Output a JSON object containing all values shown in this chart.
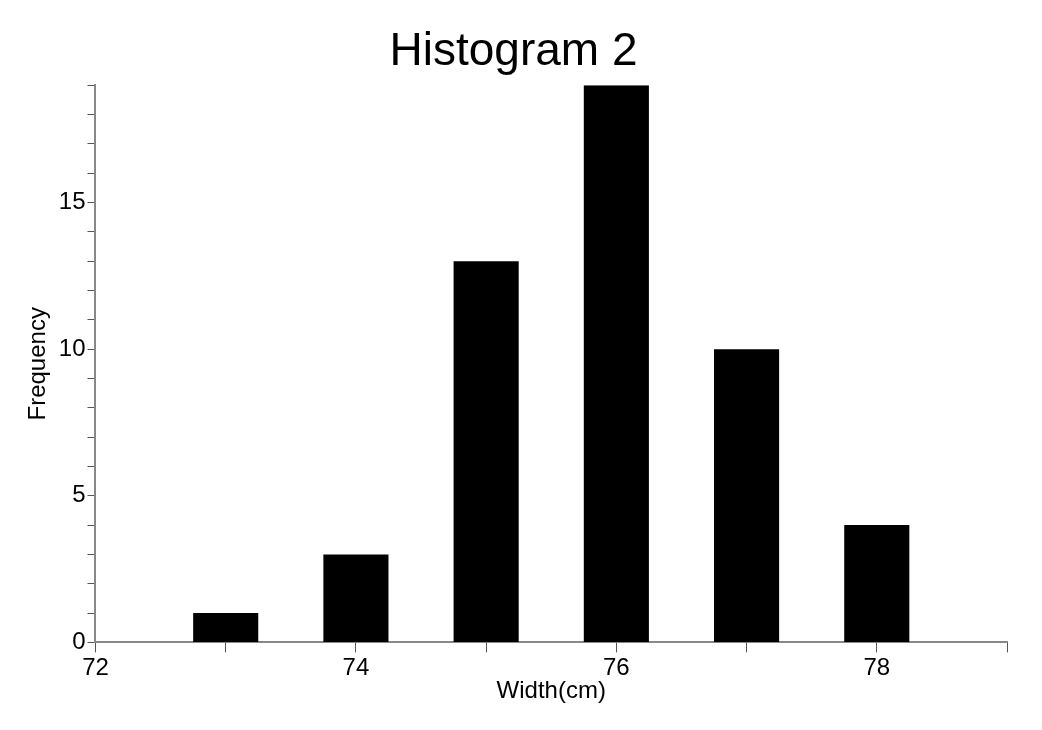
{
  "chart_data": {
    "type": "bar",
    "title": "Histogram 2",
    "xlabel": "Width(cm)",
    "ylabel": "Frequency",
    "x": [
      73,
      74,
      75,
      76,
      77,
      78
    ],
    "values": [
      1,
      3,
      13,
      19,
      10,
      4
    ],
    "color": "#000000",
    "xlim": [
      72,
      79
    ],
    "xticks": [
      72,
      {
        "value": 73,
        "label": null
      },
      74,
      {
        "value": 75,
        "label": null
      },
      76,
      {
        "value": 77,
        "label": null
      },
      78,
      {
        "value": 79,
        "label": null
      }
    ],
    "ylim": [
      0,
      19
    ],
    "yticks": [
      0,
      {
        "value": 1,
        "label": null
      },
      {
        "value": 2,
        "label": null
      },
      {
        "value": 3,
        "label": null
      },
      {
        "value": 4,
        "label": null
      },
      5,
      {
        "value": 6,
        "label": null
      },
      {
        "value": 7,
        "label": null
      },
      {
        "value": 8,
        "label": null
      },
      {
        "value": 9,
        "label": null
      },
      10,
      {
        "value": 11,
        "label": null
      },
      {
        "value": 12,
        "label": null
      },
      {
        "value": 13,
        "label": null
      },
      {
        "value": 14,
        "label": null
      },
      15,
      {
        "value": 16,
        "label": null
      },
      {
        "value": 17,
        "label": null
      },
      {
        "value": 18,
        "label": null
      },
      {
        "value": 19,
        "label": null
      }
    ]
  }
}
